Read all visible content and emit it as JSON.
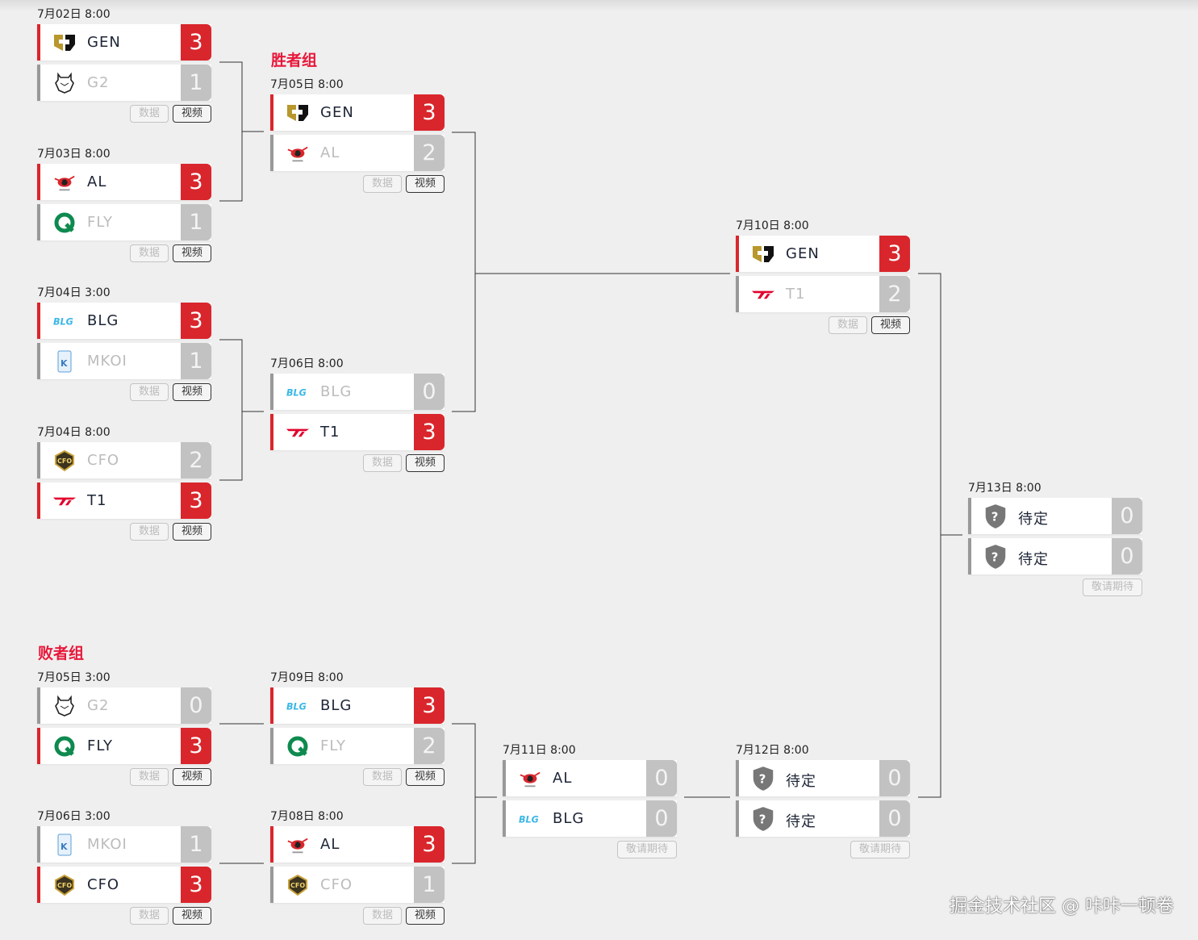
{
  "sections": {
    "winners": "胜者组",
    "losers": "败者组"
  },
  "buttons": {
    "data": "数据",
    "video": "视频",
    "coming": "敬请期待"
  },
  "colors": {
    "accent": "#e8173a",
    "win_score": "#d9262c",
    "lose_score": "#c2c2c2"
  },
  "matches": [
    {
      "date": "7月02日 8:00",
      "teams": [
        {
          "name": "GEN",
          "logo": "gen-logo-icon",
          "score": "3",
          "win": true
        },
        {
          "name": "G2",
          "logo": "g2-logo-icon",
          "score": "1",
          "win": false
        }
      ],
      "status": "done"
    },
    {
      "date": "7月03日 8:00",
      "teams": [
        {
          "name": "AL",
          "logo": "al-logo-icon",
          "score": "3",
          "win": true
        },
        {
          "name": "FLY",
          "logo": "fly-logo-icon",
          "score": "1",
          "win": false
        }
      ],
      "status": "done"
    },
    {
      "date": "7月04日 3:00",
      "teams": [
        {
          "name": "BLG",
          "logo": "blg-logo-icon",
          "score": "3",
          "win": true
        },
        {
          "name": "MKOI",
          "logo": "mkoi-logo-icon",
          "score": "1",
          "win": false
        }
      ],
      "status": "done"
    },
    {
      "date": "7月04日 8:00",
      "teams": [
        {
          "name": "CFO",
          "logo": "cfo-logo-icon",
          "score": "2",
          "win": false
        },
        {
          "name": "T1",
          "logo": "t1-logo-icon",
          "score": "3",
          "win": true
        }
      ],
      "status": "done"
    },
    {
      "date": "7月05日 8:00",
      "teams": [
        {
          "name": "GEN",
          "logo": "gen-logo-icon",
          "score": "3",
          "win": true
        },
        {
          "name": "AL",
          "logo": "al-logo-icon",
          "score": "2",
          "win": false
        }
      ],
      "status": "done"
    },
    {
      "date": "7月06日 8:00",
      "teams": [
        {
          "name": "BLG",
          "logo": "blg-logo-icon",
          "score": "0",
          "win": false
        },
        {
          "name": "T1",
          "logo": "t1-logo-icon",
          "score": "3",
          "win": true
        }
      ],
      "status": "done"
    },
    {
      "date": "7月10日 8:00",
      "teams": [
        {
          "name": "GEN",
          "logo": "gen-logo-icon",
          "score": "3",
          "win": true
        },
        {
          "name": "T1",
          "logo": "t1-logo-icon",
          "score": "2",
          "win": false
        }
      ],
      "status": "done"
    },
    {
      "date": "7月13日 8:00",
      "teams": [
        {
          "name": "待定",
          "logo": "tbd-shield-icon",
          "score": "0",
          "win": null
        },
        {
          "name": "待定",
          "logo": "tbd-shield-icon",
          "score": "0",
          "win": null
        }
      ],
      "status": "upcoming"
    },
    {
      "date": "7月05日 3:00",
      "teams": [
        {
          "name": "G2",
          "logo": "g2-logo-icon",
          "score": "0",
          "win": false
        },
        {
          "name": "FLY",
          "logo": "fly-logo-icon",
          "score": "3",
          "win": true
        }
      ],
      "status": "done"
    },
    {
      "date": "7月06日 3:00",
      "teams": [
        {
          "name": "MKOI",
          "logo": "mkoi-logo-icon",
          "score": "1",
          "win": false
        },
        {
          "name": "CFO",
          "logo": "cfo-logo-icon",
          "score": "3",
          "win": true
        }
      ],
      "status": "done"
    },
    {
      "date": "7月09日 8:00",
      "teams": [
        {
          "name": "BLG",
          "logo": "blg-logo-icon",
          "score": "3",
          "win": true
        },
        {
          "name": "FLY",
          "logo": "fly-logo-icon",
          "score": "2",
          "win": false
        }
      ],
      "status": "done"
    },
    {
      "date": "7月08日 8:00",
      "teams": [
        {
          "name": "AL",
          "logo": "al-logo-icon",
          "score": "3",
          "win": true
        },
        {
          "name": "CFO",
          "logo": "cfo-logo-icon",
          "score": "1",
          "win": false
        }
      ],
      "status": "done"
    },
    {
      "date": "7月11日 8:00",
      "teams": [
        {
          "name": "AL",
          "logo": "al-logo-icon",
          "score": "0",
          "win": null
        },
        {
          "name": "BLG",
          "logo": "blg-logo-icon",
          "score": "0",
          "win": null
        }
      ],
      "status": "upcoming"
    },
    {
      "date": "7月12日 8:00",
      "teams": [
        {
          "name": "待定",
          "logo": "tbd-shield-icon",
          "score": "0",
          "win": null
        },
        {
          "name": "待定",
          "logo": "tbd-shield-icon",
          "score": "0",
          "win": null
        }
      ],
      "status": "upcoming"
    }
  ],
  "watermark": "掘金技术社区 @ 咔咔一顿卷"
}
